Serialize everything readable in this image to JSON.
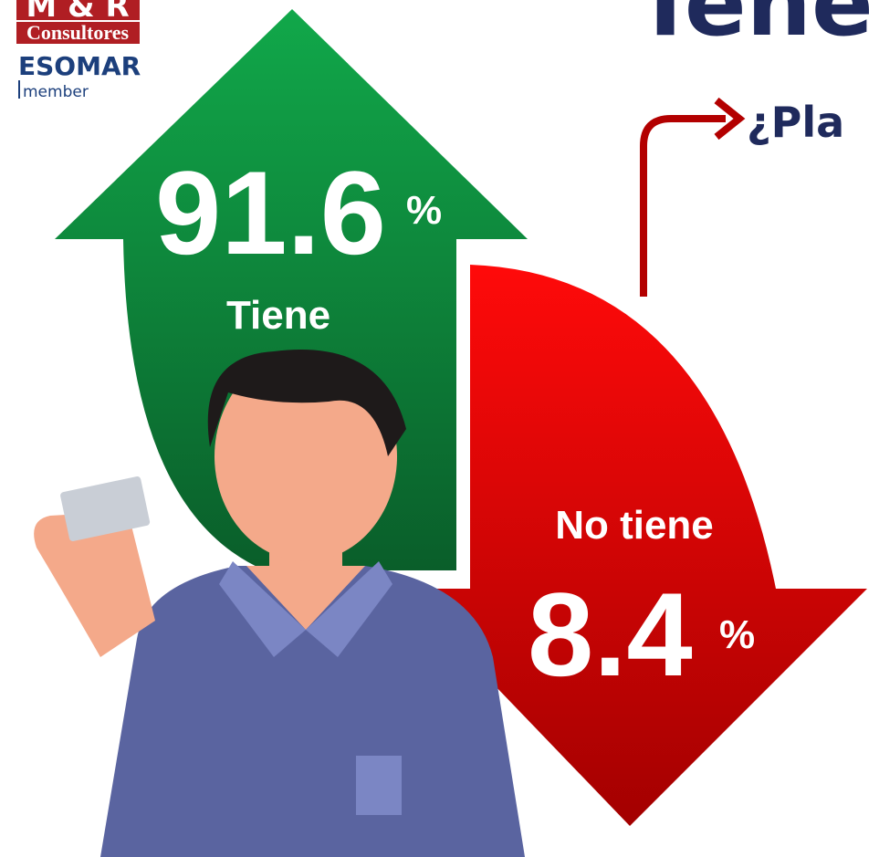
{
  "logo": {
    "name": "M & R",
    "subtitle": "Consultores",
    "association": "ESOMAR",
    "membership": "member"
  },
  "header": {
    "title": "Tenen",
    "question": "¿Pla"
  },
  "items": [
    {
      "label": "Tiene",
      "value": 91.6,
      "unit": "%"
    },
    {
      "label": "No tiene",
      "value": 8.4,
      "unit": "%"
    }
  ]
}
